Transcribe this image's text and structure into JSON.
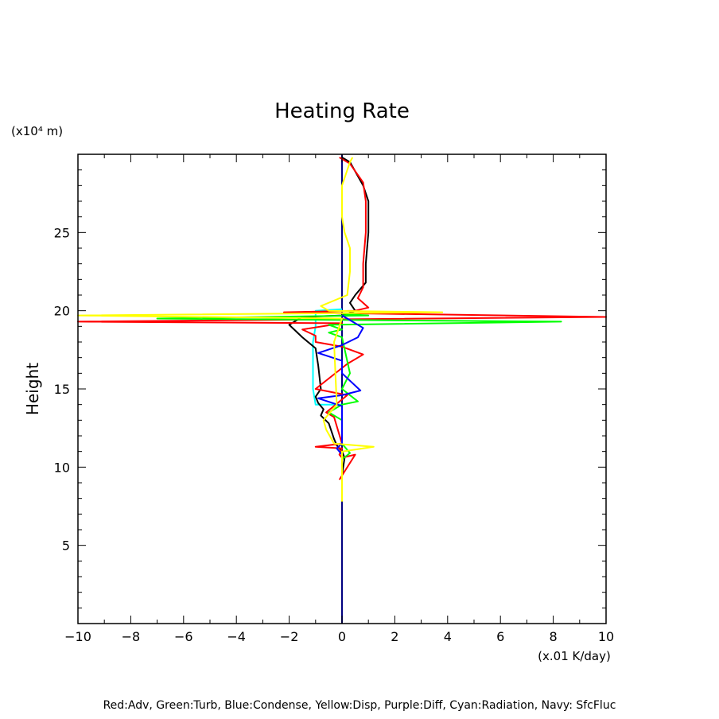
{
  "chart_data": {
    "type": "line",
    "title": "Heating Rate",
    "xlabel": "(x.01 K/day)",
    "ylabel": "Height",
    "yunit": "(x10⁴ m)",
    "xlim": [
      -10,
      10
    ],
    "ylim": [
      0,
      30
    ],
    "xticks": [
      "−10",
      "−8",
      "−6",
      "−4",
      "−2",
      "0",
      "2",
      "4",
      "6",
      "8",
      "10"
    ],
    "xtick_values": [
      -10,
      -8,
      -6,
      -4,
      -2,
      0,
      2,
      4,
      6,
      8,
      10
    ],
    "yticks": [
      "5",
      "10",
      "15",
      "20",
      "25"
    ],
    "ytick_values": [
      5,
      10,
      15,
      20,
      25
    ],
    "grid": false,
    "legend_text": "Red:Adv, Green:Turb, Blue:Condense, Yellow:Disp, Purple:Diff, Cyan:Radiation, Navy: SfcFluc",
    "series": [
      {
        "name": "Navy: SfcFluc",
        "color": "#000080",
        "x": [
          0,
          0
        ],
        "y": [
          0,
          30
        ]
      },
      {
        "name": "Cyan:Radiation",
        "color": "#00ffff",
        "x": [
          0,
          -1.0,
          -1.0,
          -1.1,
          -1.1,
          -1.0,
          0
        ],
        "y": [
          20.1,
          20.0,
          19.0,
          18.0,
          15.0,
          14.0,
          14.0
        ]
      },
      {
        "name": "Black",
        "color": "#000000",
        "x": [
          0.0,
          0.3,
          0.8,
          1.0,
          1.0,
          0.9,
          0.9,
          0.5,
          0.3,
          0.5,
          0.0,
          -1.5,
          -1.8,
          -2.0,
          -1.5,
          -1.0,
          -0.9,
          -0.8,
          -1.0,
          -0.9,
          -0.7,
          -0.8,
          -0.5,
          -0.4,
          -0.3,
          -0.2,
          0.0,
          0.1,
          0.0,
          0.0
        ],
        "y": [
          29.8,
          29.5,
          28.0,
          27.0,
          25.0,
          23.0,
          21.8,
          21.0,
          20.5,
          20.0,
          19.7,
          19.6,
          19.3,
          19.1,
          18.3,
          17.6,
          16.5,
          15.0,
          14.5,
          14.1,
          13.7,
          13.3,
          12.8,
          12.3,
          11.8,
          11.4,
          11.0,
          10.6,
          9.5,
          7.8
        ]
      },
      {
        "name": "Red:Adv",
        "color": "#ff0000",
        "x": [
          -0.1,
          0.3,
          0.8,
          0.9,
          0.9,
          0.8,
          0.8,
          0.6,
          1.0,
          0.5,
          -2.2,
          10.0,
          -10.0,
          0.0,
          -1.5,
          -1.0,
          -1.0,
          0.0,
          0.8,
          0.2,
          -1.0,
          0.2,
          -0.6,
          -0.3,
          0.0,
          -1.0,
          0.0,
          -0.1,
          0.0,
          0.5,
          -0.1
        ],
        "y": [
          29.8,
          29.4,
          28.2,
          27.0,
          25.0,
          23.0,
          21.5,
          20.8,
          20.2,
          20.0,
          19.9,
          19.6,
          19.3,
          19.2,
          18.8,
          18.4,
          18.0,
          17.7,
          17.2,
          16.6,
          15.0,
          14.6,
          13.5,
          13.2,
          11.5,
          11.3,
          11.2,
          10.8,
          10.6,
          10.8,
          9.2
        ]
      },
      {
        "name": "Green:Turb",
        "color": "#00ff00",
        "x": [
          0.0,
          1.0,
          -7.0,
          8.3,
          -0.5,
          0.0,
          -0.5,
          0.0,
          0.3,
          0.0,
          0.6,
          0.0,
          -0.5,
          0.0,
          0.0,
          0.3,
          0.0
        ],
        "y": [
          19.8,
          19.7,
          19.5,
          19.3,
          19.1,
          18.8,
          18.6,
          18.3,
          16.0,
          15.0,
          14.2,
          14.0,
          13.5,
          13.0,
          11.5,
          10.9,
          10.5
        ]
      },
      {
        "name": "Blue:Condense",
        "color": "#0000ff",
        "x": [
          0.0,
          0.3,
          0.8,
          0.6,
          0.0,
          -0.9,
          0.0,
          0.0,
          0.0,
          0.7,
          0.0,
          -0.9,
          0.0,
          0.0,
          -0.2,
          0.0
        ],
        "y": [
          19.7,
          19.4,
          18.9,
          18.3,
          17.8,
          17.3,
          16.8,
          16.5,
          16.0,
          14.9,
          14.6,
          14.4,
          13.9,
          11.5,
          11.2,
          10.8
        ]
      },
      {
        "name": "Yellow:Disp",
        "color": "#ffff00",
        "x": [
          0.4,
          0.3,
          0.0,
          0.0,
          0.1,
          0.3,
          0.3,
          0.2,
          -0.8,
          -0.5,
          3.8,
          -10.0,
          0.0,
          -0.3,
          -0.2,
          -0.7,
          -0.6,
          -0.3,
          1.2,
          0.0,
          0.0,
          0.0
        ],
        "y": [
          29.8,
          29.5,
          28.0,
          26.0,
          25.0,
          24.0,
          22.5,
          21.0,
          20.3,
          20.0,
          19.9,
          19.7,
          19.5,
          18.0,
          14.0,
          13.0,
          12.4,
          11.5,
          11.3,
          11.0,
          10.5,
          7.8
        ]
      }
    ]
  }
}
